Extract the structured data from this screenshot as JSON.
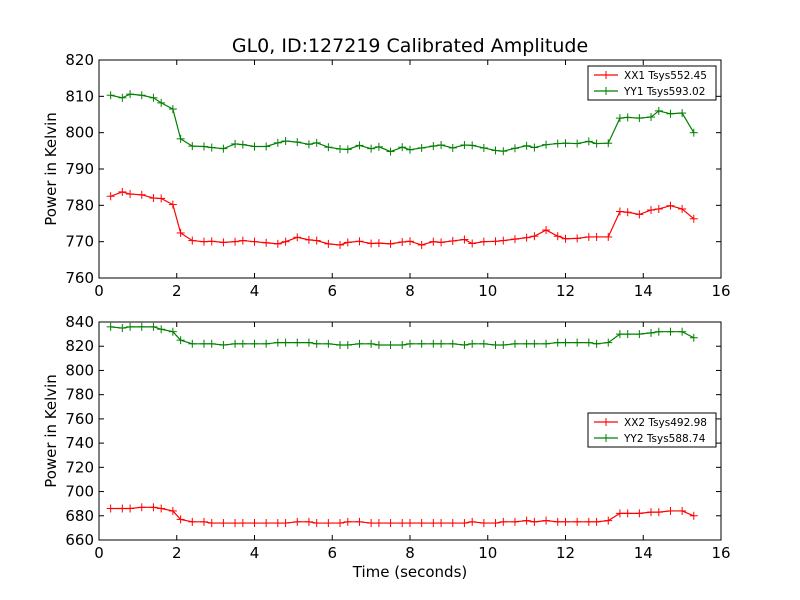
{
  "chart_data": [
    {
      "type": "line",
      "title": "GL0, ID:127219 Calibrated Amplitude",
      "xlabel": "",
      "ylabel": "Power in Kelvin",
      "xlim": [
        0,
        16
      ],
      "ylim": [
        760,
        820
      ],
      "xticks": [
        0,
        2,
        4,
        6,
        8,
        10,
        12,
        14,
        16
      ],
      "yticks": [
        760,
        770,
        780,
        790,
        800,
        810,
        820
      ],
      "legend_position": "top-right",
      "x": [
        0.3,
        0.6,
        0.8,
        1.1,
        1.4,
        1.6,
        1.9,
        2.1,
        2.4,
        2.7,
        2.9,
        3.2,
        3.5,
        3.7,
        4.0,
        4.3,
        4.6,
        4.8,
        5.1,
        5.4,
        5.6,
        5.9,
        6.2,
        6.4,
        6.7,
        7.0,
        7.2,
        7.5,
        7.8,
        8.0,
        8.3,
        8.6,
        8.8,
        9.1,
        9.4,
        9.6,
        9.9,
        10.2,
        10.4,
        10.7,
        11.0,
        11.2,
        11.5,
        11.8,
        12.0,
        12.3,
        12.6,
        12.8,
        13.1,
        13.4,
        13.6,
        13.9,
        14.2,
        14.4,
        14.7,
        15.0,
        15.3
      ],
      "series": [
        {
          "name": "XX1 Tsys552.45",
          "color": "#ff0000",
          "values": [
            782.5,
            783.7,
            783.1,
            782.9,
            782.0,
            781.9,
            780.2,
            772.4,
            770.3,
            770.0,
            770.1,
            769.8,
            770.0,
            770.3,
            770.0,
            769.7,
            769.4,
            770.0,
            771.2,
            770.5,
            770.3,
            769.4,
            769.1,
            769.8,
            770.1,
            769.5,
            769.6,
            769.4,
            769.9,
            770.1,
            769.1,
            770.0,
            769.8,
            770.2,
            770.6,
            769.5,
            770.0,
            770.1,
            770.3,
            770.7,
            771.1,
            771.5,
            773.2,
            771.5,
            770.8,
            770.9,
            771.3,
            771.3,
            771.3,
            778.3,
            778.1,
            777.5,
            778.7,
            779.0,
            779.9,
            779.0,
            776.3
          ]
        },
        {
          "name": "YY1 Tsys593.02",
          "color": "#008000",
          "values": [
            810.3,
            809.6,
            810.6,
            810.3,
            809.6,
            808.2,
            806.5,
            798.3,
            796.3,
            796.2,
            795.9,
            795.6,
            796.9,
            796.7,
            796.2,
            796.2,
            797.2,
            797.7,
            797.4,
            796.8,
            797.2,
            796.0,
            795.5,
            795.4,
            796.5,
            795.6,
            796.1,
            794.8,
            796.0,
            795.3,
            795.8,
            796.3,
            796.6,
            795.8,
            796.6,
            796.5,
            795.8,
            795.1,
            794.9,
            795.7,
            796.4,
            795.9,
            796.7,
            797.0,
            797.1,
            797.0,
            797.6,
            797.0,
            797.1,
            804.0,
            804.2,
            804.0,
            804.3,
            806.0,
            805.2,
            805.4,
            800.0
          ]
        }
      ]
    },
    {
      "type": "line",
      "title": "",
      "xlabel": "Time (seconds)",
      "ylabel": "Power in Kelvin",
      "xlim": [
        0,
        16
      ],
      "ylim": [
        660,
        840
      ],
      "xticks": [
        0,
        2,
        4,
        6,
        8,
        10,
        12,
        14,
        16
      ],
      "yticks": [
        660,
        680,
        700,
        720,
        740,
        760,
        780,
        800,
        820,
        840
      ],
      "legend_position": "center-right",
      "x": [
        0.3,
        0.6,
        0.8,
        1.1,
        1.4,
        1.6,
        1.9,
        2.1,
        2.4,
        2.7,
        2.9,
        3.2,
        3.5,
        3.7,
        4.0,
        4.3,
        4.6,
        4.8,
        5.1,
        5.4,
        5.6,
        5.9,
        6.2,
        6.4,
        6.7,
        7.0,
        7.2,
        7.5,
        7.8,
        8.0,
        8.3,
        8.6,
        8.8,
        9.1,
        9.4,
        9.6,
        9.9,
        10.2,
        10.4,
        10.7,
        11.0,
        11.2,
        11.5,
        11.8,
        12.0,
        12.3,
        12.6,
        12.8,
        13.1,
        13.4,
        13.6,
        13.9,
        14.2,
        14.4,
        14.7,
        15.0,
        15.3
      ],
      "series": [
        {
          "name": "XX2 Tsys492.98",
          "color": "#ff0000",
          "values": [
            686,
            686,
            686,
            687,
            687,
            686,
            684,
            677,
            675,
            675,
            674,
            674,
            674,
            674,
            674,
            674,
            674,
            674,
            675,
            675,
            674,
            674,
            674,
            675,
            675,
            674,
            674,
            674,
            674,
            674,
            674,
            674,
            674,
            674,
            674,
            675,
            674,
            674,
            675,
            675,
            676,
            675,
            676,
            675,
            675,
            675,
            675,
            675,
            676,
            682,
            682,
            682,
            683,
            683,
            684,
            684,
            680
          ]
        },
        {
          "name": "YY2 Tsys588.74",
          "color": "#008000",
          "values": [
            836,
            835,
            836,
            836,
            836,
            834,
            832,
            825,
            822,
            822,
            822,
            821,
            822,
            822,
            822,
            822,
            823,
            823,
            823,
            823,
            822,
            822,
            821,
            821,
            822,
            822,
            821,
            821,
            821,
            822,
            822,
            822,
            822,
            822,
            821,
            822,
            822,
            821,
            821,
            822,
            822,
            822,
            822,
            823,
            823,
            823,
            823,
            822,
            823,
            830,
            830,
            830,
            831,
            832,
            832,
            832,
            827
          ]
        }
      ]
    }
  ]
}
